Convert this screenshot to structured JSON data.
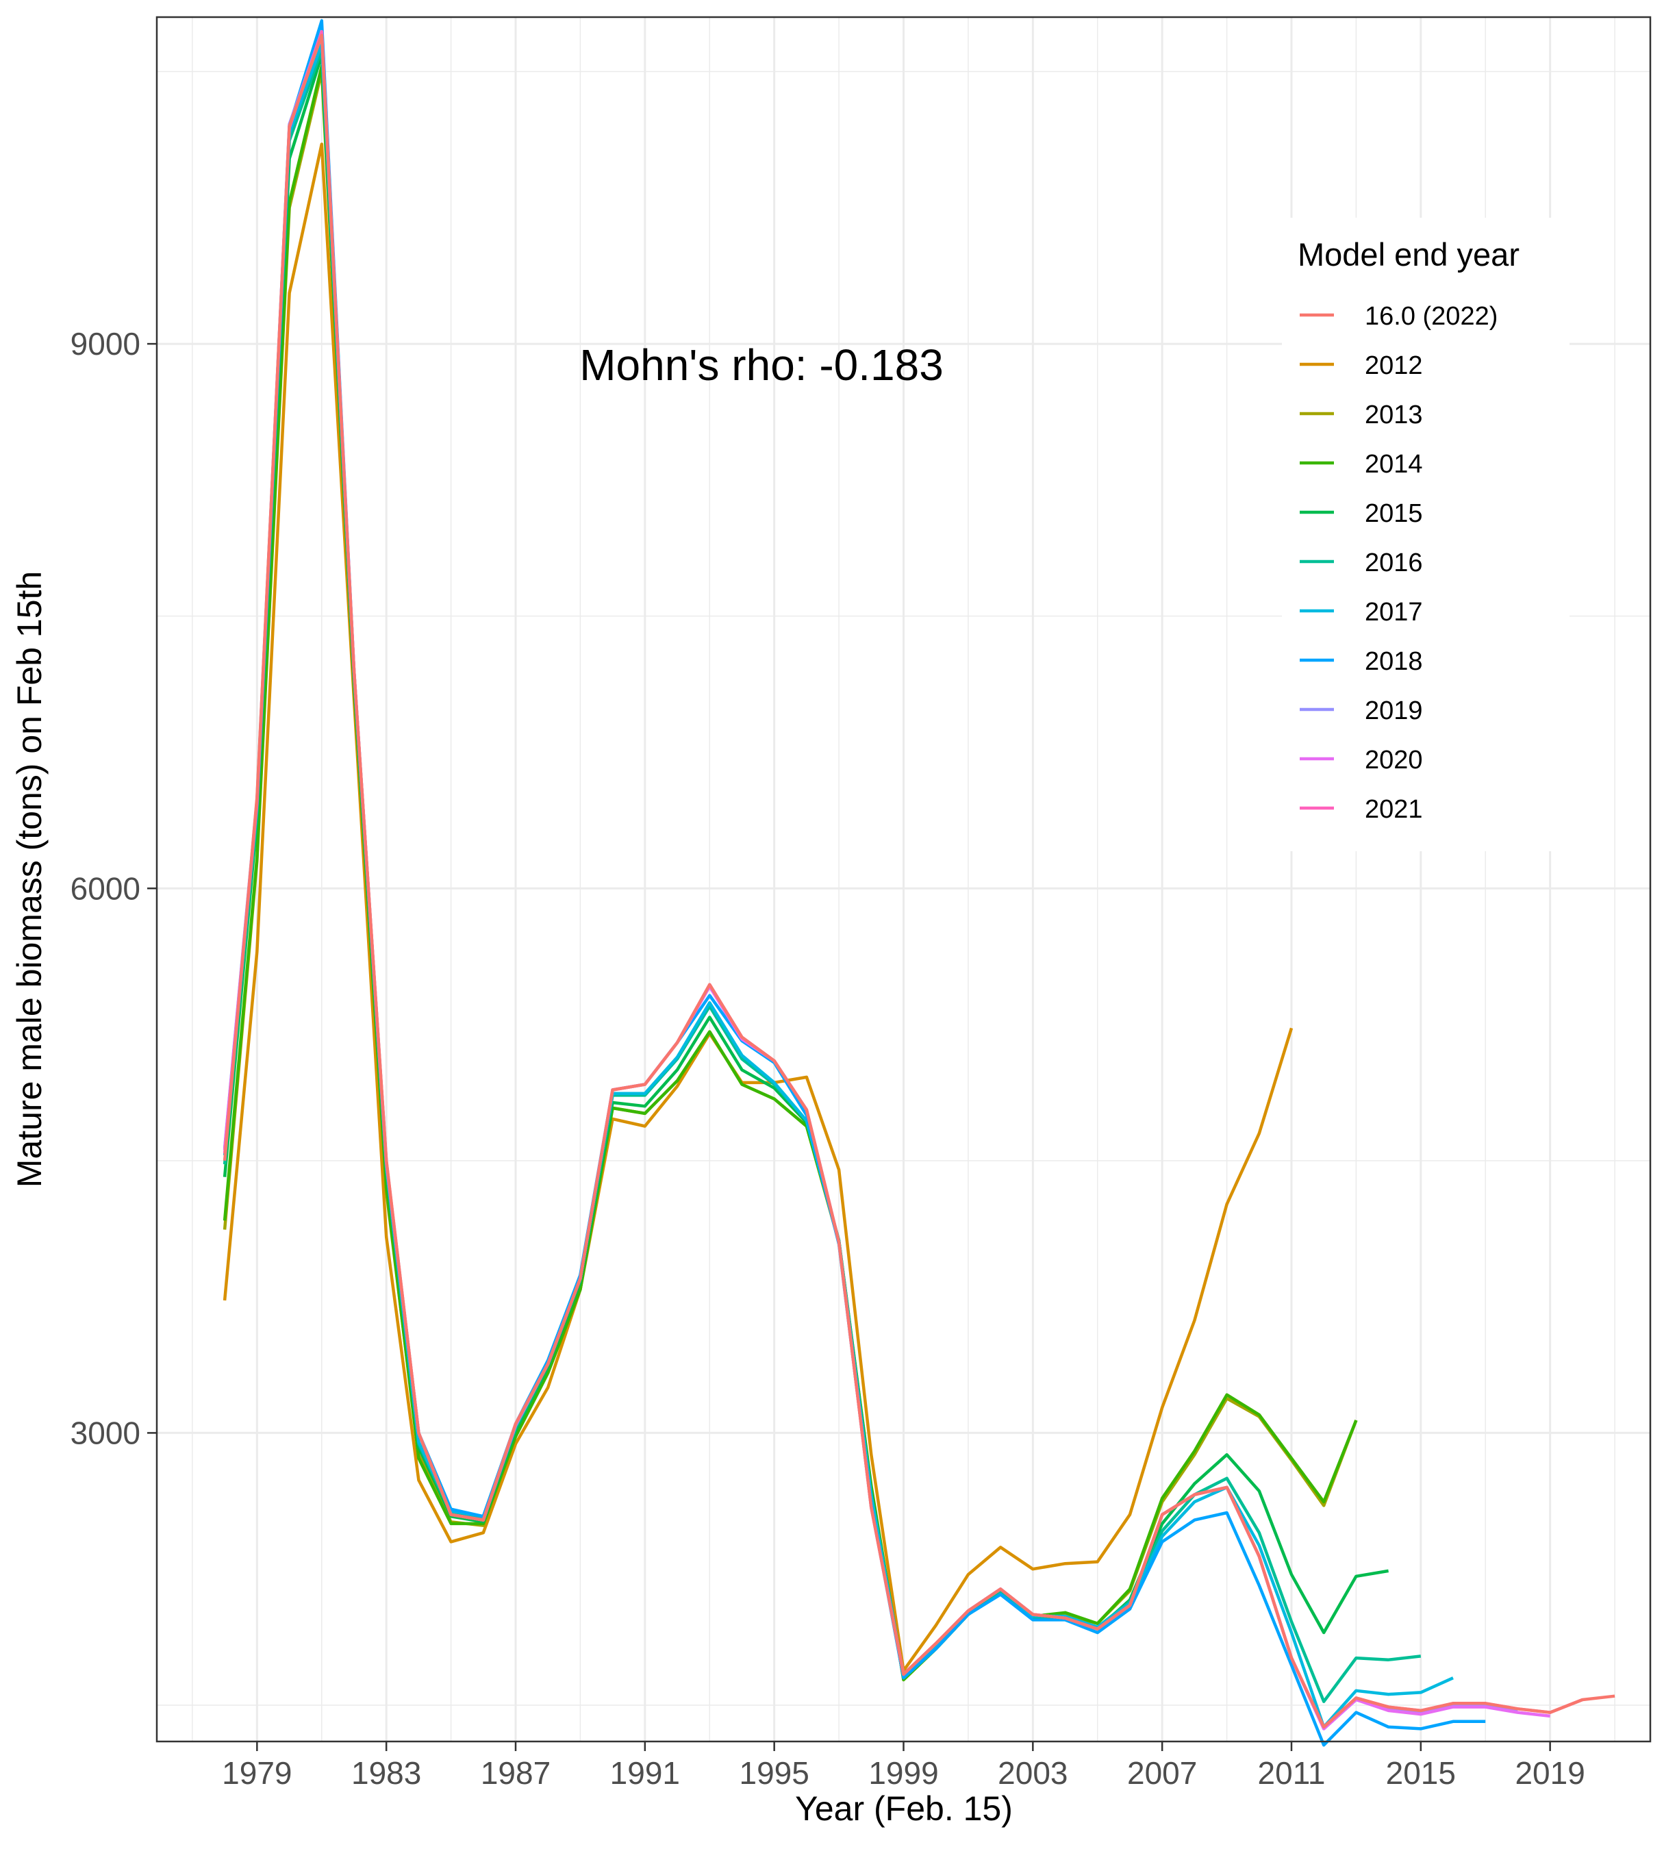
{
  "chart_data": {
    "type": "line",
    "title": "",
    "xlabel": "Year (Feb. 15)",
    "ylabel": "Mature male biomass (tons) on Feb 15th",
    "annotation": "Mohn's rho: -0.183",
    "xlim": [
      1975.9,
      2022.1
    ],
    "ylim": [
      1300,
      10800
    ],
    "x_ticks": [
      1979,
      1983,
      1987,
      1991,
      1995,
      1999,
      2003,
      2007,
      2011,
      2015,
      2019
    ],
    "x_tick_labels": [
      "1979",
      "1983",
      "1987",
      "1991",
      "1995",
      "1999",
      "2003",
      "2007",
      "2011",
      "2015",
      "2019"
    ],
    "y_ticks": [
      3000,
      6000,
      9000
    ],
    "y_tick_labels": [
      "3000",
      "6000",
      "9000"
    ],
    "grid": true,
    "legend": {
      "title": "Model end year",
      "position": "right-inside"
    },
    "series": [
      {
        "name": "16.0 (2022)",
        "color": "#F8766D",
        "x": [
          1978,
          1979,
          1980,
          1981,
          1982,
          1983,
          1984,
          1985,
          1986,
          1987,
          1988,
          1989,
          1990,
          1991,
          1992,
          1993,
          1994,
          1995,
          1996,
          1997,
          1998,
          1999,
          2000,
          2001,
          2002,
          2003,
          2004,
          2005,
          2006,
          2007,
          2008,
          2009,
          2010,
          2011,
          2012,
          2013,
          2014,
          2015,
          2016,
          2017,
          2018,
          2019,
          2020,
          2021
        ],
        "y": [
          4500,
          6500,
          10200,
          10700,
          7200,
          4500,
          3000,
          2550,
          2520,
          3050,
          3380,
          3850,
          4890,
          4920,
          5150,
          5470,
          5180,
          5050,
          4780,
          4050,
          2590,
          1670,
          1840,
          2020,
          2140,
          2000,
          1980,
          1920,
          2050,
          2550,
          2660,
          2700,
          2320,
          1760,
          1380,
          1540,
          1490,
          1470,
          1510,
          1510,
          1480,
          1460,
          1530,
          1550
        ]
      },
      {
        "name": "2012",
        "color": "#D89000",
        "x": [
          1978,
          1979,
          1980,
          1981,
          1982,
          1983,
          1984,
          1985,
          1986,
          1987,
          1988,
          1989,
          1990,
          1991,
          1992,
          1993,
          1994,
          1995,
          1996,
          1997,
          1998,
          1999,
          2000,
          2001,
          2002,
          2003,
          2004,
          2005,
          2006,
          2007,
          2008,
          2009,
          2010,
          2011
        ],
        "y": [
          3730,
          5650,
          9280,
          10100,
          7040,
          4080,
          2740,
          2400,
          2450,
          2940,
          3250,
          3790,
          4730,
          4690,
          4910,
          5200,
          4930,
          4930,
          4960,
          4450,
          2880,
          1690,
          1940,
          2220,
          2370,
          2250,
          2280,
          2290,
          2550,
          3140,
          3620,
          4260,
          4650,
          5230
        ]
      },
      {
        "name": "2013",
        "color": "#A3A500",
        "x": [
          1978,
          1979,
          1980,
          1981,
          1982,
          1983,
          1984,
          1985,
          1986,
          1987,
          1988,
          1989,
          1990,
          1991,
          1992,
          1993,
          1994,
          1995,
          1996,
          1997,
          1998,
          1999,
          2000,
          2001,
          2002,
          2003,
          2004,
          2005,
          2006,
          2007,
          2008,
          2009,
          2010,
          2011,
          2012,
          2013
        ],
        "y": [
          4120,
          6150,
          9750,
          10500,
          7110,
          4330,
          2880,
          2510,
          2490,
          2980,
          3350,
          3790,
          4790,
          4760,
          4940,
          5210,
          4920,
          4840,
          4690,
          4050,
          2710,
          1640,
          1810,
          2000,
          2130,
          1990,
          2000,
          1950,
          2130,
          2620,
          2880,
          3190,
          3090,
          2850,
          2600,
          3070
        ]
      },
      {
        "name": "2014",
        "color": "#39B600",
        "x": [
          1978,
          1979,
          1980,
          1981,
          1982,
          1983,
          1984,
          1985,
          1986,
          1987,
          1988,
          1989,
          1990,
          1991,
          1992,
          1993,
          1994,
          1995,
          1996,
          1997,
          1998,
          1999,
          2000,
          2001,
          2002,
          2003,
          2004,
          2005,
          2006,
          2007,
          2008,
          2009,
          2010,
          2011,
          2012,
          2013
        ],
        "y": [
          4170,
          6170,
          9780,
          10530,
          7120,
          4350,
          2860,
          2500,
          2500,
          2980,
          3330,
          3790,
          4790,
          4760,
          4940,
          5210,
          4920,
          4840,
          4690,
          4060,
          2700,
          1640,
          1810,
          2000,
          2130,
          1990,
          2010,
          1950,
          2140,
          2640,
          2900,
          3210,
          3100,
          2860,
          2620,
          3070
        ]
      },
      {
        "name": "2015",
        "color": "#00BB4E",
        "x": [
          1978,
          1979,
          1980,
          1981,
          1982,
          1983,
          1984,
          1985,
          1986,
          1987,
          1988,
          1989,
          1990,
          1991,
          1992,
          1993,
          1994,
          1995,
          1996,
          1997,
          1998,
          1999,
          2000,
          2001,
          2002,
          2003,
          2004,
          2005,
          2006,
          2007,
          2008,
          2009,
          2010,
          2011,
          2012,
          2013,
          2014
        ],
        "y": [
          4410,
          6380,
          10020,
          10590,
          7160,
          4440,
          2920,
          2540,
          2510,
          3010,
          3360,
          3830,
          4820,
          4800,
          5000,
          5290,
          5000,
          4900,
          4710,
          4060,
          2680,
          1650,
          1810,
          2000,
          2120,
          1980,
          1980,
          1920,
          2080,
          2500,
          2720,
          2880,
          2680,
          2220,
          1900,
          2210,
          2240
        ]
      },
      {
        "name": "2016",
        "color": "#00BF96",
        "x": [
          1978,
          1979,
          1980,
          1981,
          1982,
          1983,
          1984,
          1985,
          1986,
          1987,
          1988,
          1989,
          1990,
          1991,
          1992,
          1993,
          1994,
          1995,
          1996,
          1997,
          1998,
          1999,
          2000,
          2001,
          2002,
          2003,
          2004,
          2005,
          2006,
          2007,
          2008,
          2009,
          2010,
          2011,
          2012,
          2013,
          2014,
          2015
        ],
        "y": [
          4480,
          6430,
          10120,
          10620,
          7170,
          4460,
          2940,
          2560,
          2530,
          3030,
          3380,
          3850,
          4860,
          4860,
          5060,
          5350,
          5060,
          4920,
          4720,
          4060,
          2660,
          1660,
          1820,
          2020,
          2130,
          1990,
          1990,
          1930,
          2070,
          2460,
          2660,
          2750,
          2450,
          1960,
          1520,
          1760,
          1750,
          1770
        ]
      },
      {
        "name": "2017",
        "color": "#00BAE0",
        "x": [
          1978,
          1979,
          1980,
          1981,
          1982,
          1983,
          1984,
          1985,
          1986,
          1987,
          1988,
          1989,
          1990,
          1991,
          1992,
          1993,
          1994,
          1995,
          1996,
          1997,
          1998,
          1999,
          2000,
          2001,
          2002,
          2003,
          2004,
          2005,
          2006,
          2007,
          2008,
          2009,
          2010,
          2011,
          2012,
          2013,
          2014,
          2015,
          2016
        ],
        "y": [
          4530,
          6460,
          10160,
          10650,
          7180,
          4470,
          2950,
          2570,
          2540,
          3040,
          3390,
          3860,
          4870,
          4870,
          5070,
          5370,
          5080,
          4930,
          4720,
          4050,
          2650,
          1660,
          1820,
          2020,
          2140,
          1990,
          1990,
          1930,
          2060,
          2430,
          2620,
          2700,
          2380,
          1900,
          1380,
          1580,
          1560,
          1570,
          1650
        ]
      },
      {
        "name": "2018",
        "color": "#00A5FF",
        "x": [
          1978,
          1979,
          1980,
          1981,
          1982,
          1983,
          1984,
          1985,
          1986,
          1987,
          1988,
          1989,
          1990,
          1991,
          1992,
          1993,
          1994,
          1995,
          1996,
          1997,
          1998,
          1999,
          2000,
          2001,
          2002,
          2003,
          2004,
          2005,
          2006,
          2007,
          2008,
          2009,
          2010,
          2011,
          2012,
          2013,
          2014,
          2015,
          2016,
          2017
        ],
        "y": [
          4560,
          6480,
          10200,
          10780,
          7200,
          4490,
          3000,
          2580,
          2540,
          3050,
          3400,
          3870,
          4890,
          4920,
          5150,
          5410,
          5160,
          5040,
          4750,
          4040,
          2600,
          1650,
          1810,
          2000,
          2110,
          1970,
          1970,
          1900,
          2030,
          2400,
          2520,
          2560,
          2160,
          1720,
          1280,
          1460,
          1380,
          1370,
          1410,
          1410
        ]
      },
      {
        "name": "2019",
        "color": "#9590FF",
        "x": [
          1978,
          1979,
          1980,
          1981,
          1982,
          1983,
          1984,
          1985,
          1986,
          1987,
          1988,
          1989,
          1990,
          1991,
          1992,
          1993,
          1994,
          1995,
          1996,
          1997,
          1998,
          1999,
          2000,
          2001,
          2002,
          2003,
          2004,
          2005,
          2006,
          2007,
          2008,
          2009,
          2010,
          2011,
          2012,
          2013,
          2014,
          2015,
          2016,
          2017,
          2018
        ],
        "y": [
          4570,
          6490,
          10210,
          10720,
          7200,
          4490,
          3000,
          2550,
          2520,
          3040,
          3380,
          3850,
          4890,
          4920,
          5150,
          5460,
          5170,
          5050,
          4780,
          4050,
          2590,
          1670,
          1840,
          2020,
          2140,
          2000,
          1980,
          1920,
          2050,
          2550,
          2660,
          2700,
          2320,
          1760,
          1370,
          1530,
          1480,
          1460,
          1500,
          1500,
          1470
        ]
      },
      {
        "name": "2020",
        "color": "#E76BF3",
        "x": [
          1978,
          1979,
          1980,
          1981,
          1982,
          1983,
          1984,
          1985,
          1986,
          1987,
          1988,
          1989,
          1990,
          1991,
          1992,
          1993,
          1994,
          1995,
          1996,
          1997,
          1998,
          1999,
          2000,
          2001,
          2002,
          2003,
          2004,
          2005,
          2006,
          2007,
          2008,
          2009,
          2010,
          2011,
          2012,
          2013,
          2014,
          2015,
          2016,
          2017,
          2018,
          2019
        ],
        "y": [
          4560,
          6480,
          10200,
          10710,
          7200,
          4490,
          3000,
          2550,
          2520,
          3050,
          3380,
          3850,
          4890,
          4920,
          5150,
          5460,
          5170,
          5050,
          4780,
          4050,
          2590,
          1670,
          1840,
          2020,
          2140,
          2000,
          1980,
          1920,
          2050,
          2550,
          2660,
          2700,
          2320,
          1760,
          1370,
          1530,
          1470,
          1450,
          1490,
          1490,
          1460,
          1440
        ]
      },
      {
        "name": "2021",
        "color": "#FF62BC",
        "x": [
          1978,
          1979,
          1980,
          1981,
          1982,
          1983,
          1984,
          1985,
          1986,
          1987,
          1988,
          1989,
          1990,
          1991,
          1992,
          1993,
          1994,
          1995,
          1996,
          1997,
          1998,
          1999,
          2000,
          2001,
          2002,
          2003,
          2004,
          2005,
          2006,
          2007,
          2008,
          2009,
          2010,
          2011,
          2012,
          2013,
          2014,
          2015,
          2016,
          2017,
          2018,
          2019,
          2020
        ],
        "y": [
          4540,
          6470,
          10190,
          10720,
          7200,
          4500,
          3000,
          2550,
          2520,
          3050,
          3380,
          3850,
          4890,
          4920,
          5150,
          5470,
          5180,
          5050,
          4780,
          4050,
          2590,
          1670,
          1840,
          2020,
          2140,
          2000,
          1980,
          1920,
          2050,
          2550,
          2660,
          2700,
          2320,
          1760,
          1380,
          1540,
          1490,
          1470,
          1510,
          1510,
          1480,
          1460,
          1530
        ]
      }
    ]
  }
}
